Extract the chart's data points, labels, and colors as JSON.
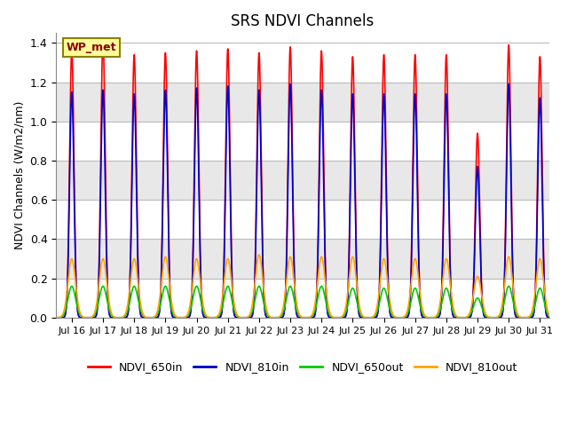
{
  "title": "SRS NDVI Channels",
  "ylabel": "NDVI Channels (W/m2/nm)",
  "xlabel": "",
  "annotation": "WP_met",
  "ylim": [
    0.0,
    1.45
  ],
  "xlim_days": [
    15.5,
    31.3
  ],
  "x_ticks": [
    16,
    17,
    18,
    19,
    20,
    21,
    22,
    23,
    24,
    25,
    26,
    27,
    28,
    29,
    30,
    31
  ],
  "x_tick_labels": [
    "Jul 16",
    "Jul 17",
    "Jul 18",
    "Jul 19",
    "Jul 20",
    "Jul 21",
    "Jul 22",
    "Jul 23",
    "Jul 24",
    "Jul 25",
    "Jul 26",
    "Jul 27",
    "Jul 28",
    "Jul 29",
    "Jul 30",
    "Jul 31"
  ],
  "yticks": [
    0.0,
    0.2,
    0.4,
    0.6,
    0.8,
    1.0,
    1.2,
    1.4
  ],
  "lines": {
    "NDVI_650in": {
      "color": "#FF0000",
      "lw": 1.2
    },
    "NDVI_810in": {
      "color": "#0000CC",
      "lw": 1.2
    },
    "NDVI_650out": {
      "color": "#00CC00",
      "lw": 1.2
    },
    "NDVI_810out": {
      "color": "#FFA500",
      "lw": 1.2
    }
  },
  "peaks_650in": [
    1.36,
    1.42,
    1.34,
    1.35,
    1.36,
    1.37,
    1.35,
    1.38,
    1.36,
    1.33,
    1.34,
    1.34,
    1.34,
    0.94,
    1.39,
    1.33
  ],
  "peaks_810in": [
    1.15,
    1.16,
    1.14,
    1.16,
    1.17,
    1.18,
    1.16,
    1.19,
    1.16,
    1.14,
    1.14,
    1.14,
    1.14,
    0.77,
    1.19,
    1.12
  ],
  "peaks_650out": [
    0.16,
    0.16,
    0.16,
    0.16,
    0.16,
    0.16,
    0.16,
    0.16,
    0.16,
    0.15,
    0.15,
    0.15,
    0.15,
    0.1,
    0.16,
    0.15
  ],
  "peaks_810out": [
    0.3,
    0.3,
    0.3,
    0.31,
    0.3,
    0.3,
    0.32,
    0.31,
    0.31,
    0.31,
    0.3,
    0.3,
    0.3,
    0.21,
    0.31,
    0.3
  ],
  "background_color": "#FFFFFF",
  "band_color": "#E8E8E8",
  "grid_color": "#BBBBBB",
  "legend_entries": [
    "NDVI_650in",
    "NDVI_810in",
    "NDVI_650out",
    "NDVI_810out"
  ],
  "legend_colors": [
    "#FF0000",
    "#0000CC",
    "#00CC00",
    "#FFA500"
  ],
  "sigma_in": 0.07,
  "sigma_out": 0.12,
  "cutoff_in": 0.25,
  "cutoff_out": 0.38
}
